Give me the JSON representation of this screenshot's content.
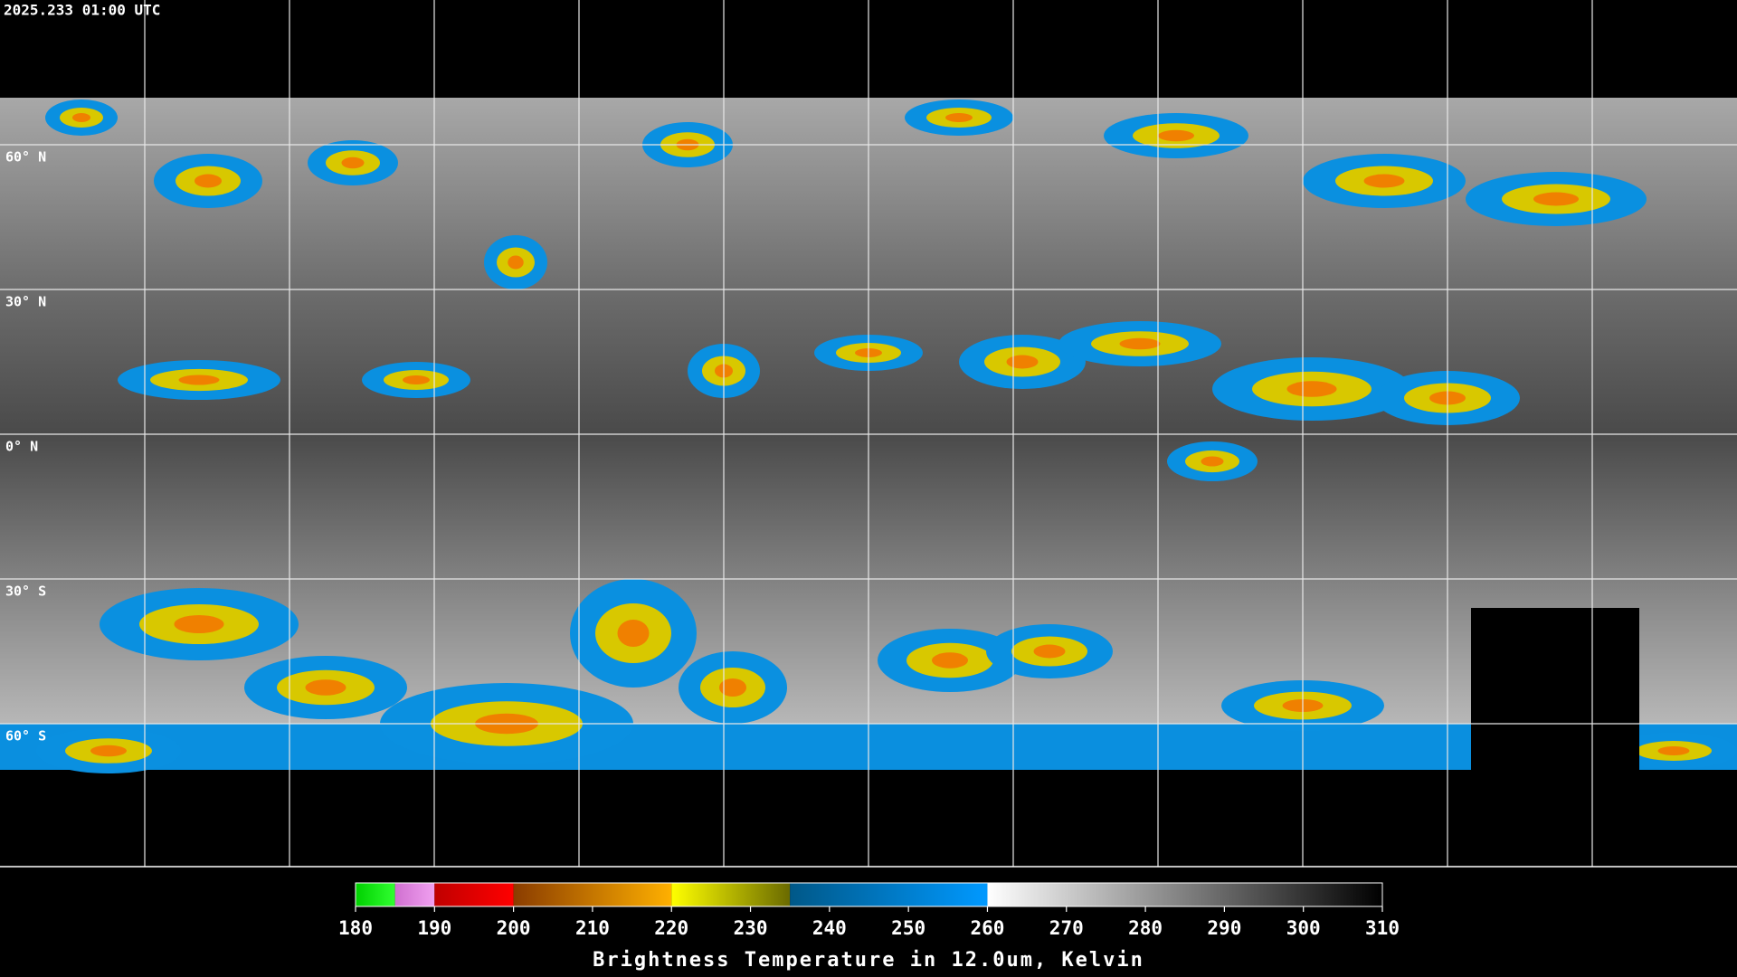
{
  "header": {
    "timestamp": "2025.233 01:00 UTC"
  },
  "map": {
    "lat_labels": [
      "60° N",
      "30° N",
      "0° N",
      "30° S",
      "60° S"
    ]
  },
  "colorbar": {
    "title": "Brightness Temperature in 12.0um, Kelvin",
    "range": [
      180,
      310
    ],
    "ticks": [
      180,
      190,
      200,
      210,
      220,
      230,
      240,
      250,
      260,
      270,
      280,
      290,
      300,
      310
    ],
    "segments": [
      {
        "from": 180,
        "to": 185,
        "colors": [
          "#00d000",
          "#30ff30"
        ]
      },
      {
        "from": 185,
        "to": 190,
        "colors": [
          "#d070d0",
          "#f0a0f0"
        ]
      },
      {
        "from": 190,
        "to": 200,
        "colors": [
          "#c00000",
          "#ff0000"
        ]
      },
      {
        "from": 200,
        "to": 220,
        "colors": [
          "#8a3c00",
          "#ffb000"
        ]
      },
      {
        "from": 220,
        "to": 235,
        "colors": [
          "#ffff00",
          "#6a6a00"
        ]
      },
      {
        "from": 235,
        "to": 260,
        "colors": [
          "#005888",
          "#0099ff"
        ]
      },
      {
        "from": 260,
        "to": 310,
        "colors": [
          "#ffffff",
          "#000000"
        ]
      }
    ]
  }
}
